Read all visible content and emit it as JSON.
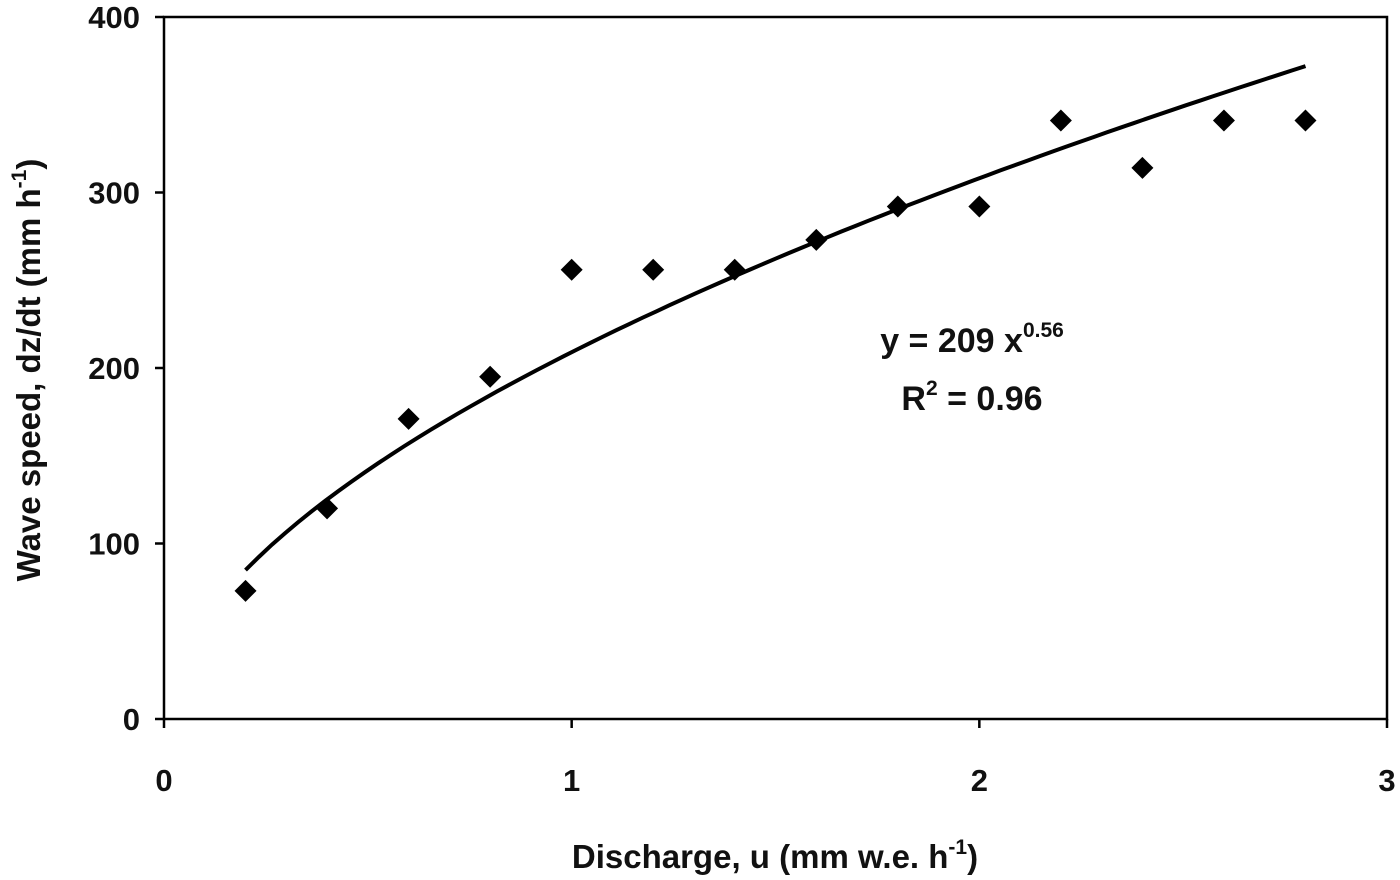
{
  "chart_data": {
    "type": "scatter",
    "title": "",
    "xlabel": "Discharge, u (mm w.e. h",
    "xlabel_sup": "-1",
    "xlabel_end": ")",
    "ylabel": "Wave speed, dz/dt (mm h",
    "ylabel_sup": "-1",
    "ylabel_end": ")",
    "xlim": [
      0,
      3
    ],
    "ylim": [
      0,
      400
    ],
    "x_ticks": [
      0,
      1,
      2,
      3
    ],
    "x_tick_labels": [
      "0",
      "1",
      "2",
      "3"
    ],
    "y_ticks": [
      0,
      100,
      200,
      300,
      400
    ],
    "y_tick_labels": [
      "0",
      "100",
      "200",
      "300",
      "400"
    ],
    "grid": false,
    "marker": "diamond",
    "series": [
      {
        "x": [
          0.2,
          0.4,
          0.6,
          0.8,
          1.0,
          1.2,
          1.4,
          1.6,
          1.8,
          2.0,
          2.2,
          2.4,
          2.6,
          2.8
        ],
        "y": [
          73,
          120,
          171,
          195,
          256,
          256,
          256,
          273,
          292,
          292,
          341,
          314,
          341,
          341
        ]
      }
    ],
    "fit": {
      "type": "power",
      "coefficient": 209,
      "exponent": 0.56,
      "x_range": [
        0.2,
        2.8
      ]
    },
    "annotations": {
      "equation": "y = 209 x",
      "equation_sup": "0.56",
      "r2_prefix": "R",
      "r2_sup": "2",
      "r2_value": " = 0.96"
    },
    "colors": {
      "marker": "#000000",
      "line": "#000000",
      "frame": "#000000"
    }
  }
}
